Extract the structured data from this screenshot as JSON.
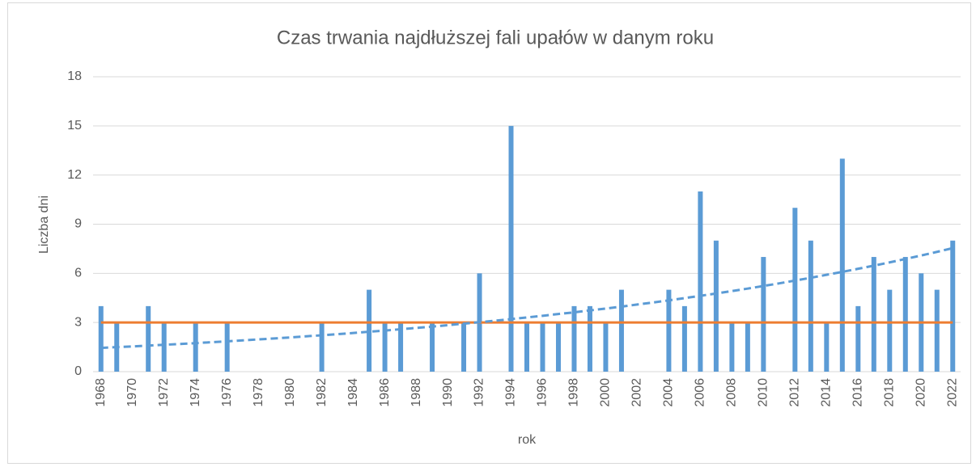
{
  "chart_data": {
    "type": "bar",
    "title": "Czas trwania najdłuższej fali upałów w danym roku",
    "y_label": "Liczba dni",
    "x_label": "rok",
    "categories": [
      "1968",
      null,
      "1970",
      null,
      "1972",
      null,
      "1974",
      null,
      "1976",
      null,
      "1978",
      null,
      "1980",
      null,
      "1982",
      null,
      "1984",
      null,
      "1986",
      null,
      "1988",
      null,
      "1990",
      null,
      "1992",
      null,
      "1994",
      null,
      "1996",
      null,
      "1998",
      null,
      "2000",
      null,
      "2002",
      null,
      "2004",
      null,
      "2006",
      null,
      "2008",
      null,
      "2010",
      null,
      "2012",
      null,
      "2014",
      null,
      "2016",
      null,
      "2018",
      null,
      "2020",
      null,
      "2022"
    ],
    "series": [
      {
        "type": "bar",
        "color": "#5b9bd5",
        "values": [
          4,
          3,
          0,
          4,
          3,
          0,
          3,
          0,
          3,
          0,
          0,
          0,
          0,
          0,
          3,
          0,
          0,
          5,
          3,
          3,
          0,
          3,
          0,
          3,
          6,
          0,
          15,
          3,
          3,
          3,
          4,
          4,
          3,
          5,
          0,
          0,
          5,
          4,
          11,
          8,
          3,
          3,
          7,
          0,
          10,
          8,
          3,
          13,
          4,
          7,
          5,
          7,
          6,
          5,
          8
        ]
      },
      {
        "type": "line",
        "color": "#ed7d31",
        "values": [
          3,
          3,
          3,
          3,
          3,
          3,
          3,
          3,
          3,
          3,
          3,
          3,
          3,
          3,
          3,
          3,
          3,
          3,
          3,
          3,
          3,
          3,
          3,
          3,
          3,
          3,
          3,
          3,
          3,
          3,
          3,
          3,
          3,
          3,
          3,
          3,
          3,
          3,
          3,
          3,
          3,
          3,
          3,
          3,
          3,
          3,
          3,
          3,
          3,
          3,
          3,
          3,
          3,
          3,
          3
        ]
      },
      {
        "type": "trendline",
        "color": "#5b9bd5",
        "dashed": true,
        "values": [
          1.45,
          1.5,
          1.54,
          1.59,
          1.64,
          1.69,
          1.74,
          1.8,
          1.85,
          1.91,
          1.97,
          2.03,
          2.09,
          2.16,
          2.22,
          2.29,
          2.36,
          2.44,
          2.51,
          2.59,
          2.67,
          2.75,
          2.84,
          2.93,
          3.02,
          3.11,
          3.21,
          3.31,
          3.41,
          3.52,
          3.62,
          3.74,
          3.85,
          3.97,
          4.1,
          4.22,
          4.35,
          4.49,
          4.63,
          4.77,
          4.92,
          5.07,
          5.23,
          5.39,
          5.56,
          5.73,
          5.91,
          6.09,
          6.28,
          6.47,
          6.67,
          6.88,
          7.09,
          7.31,
          7.54
        ]
      }
    ],
    "ylim": [
      0,
      18
    ],
    "yticks": [
      0,
      3,
      6,
      9,
      12,
      15,
      18
    ],
    "grid": true
  }
}
